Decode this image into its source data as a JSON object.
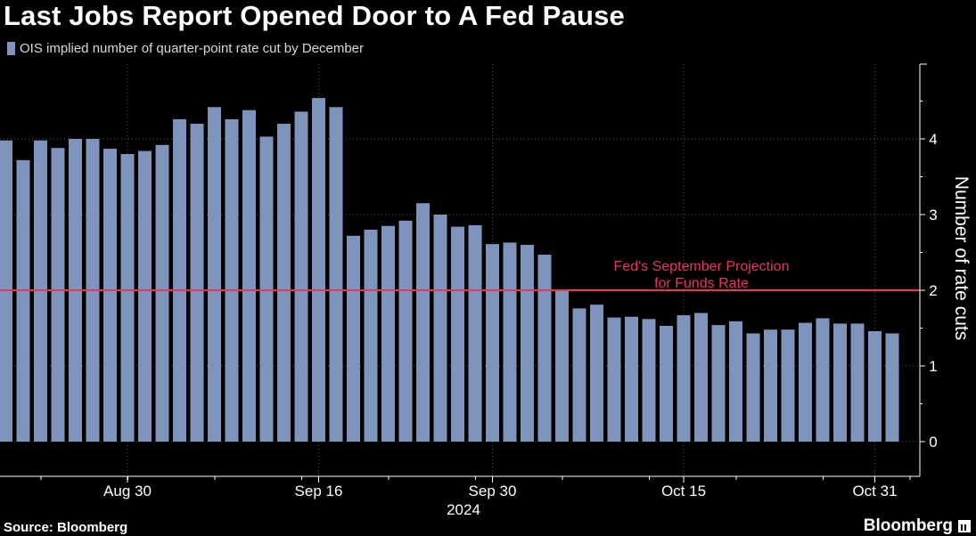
{
  "title": "Last Jobs Report Opened Door to A Fed Pause",
  "legend_label": "OIS implied number of quarter-point rate cut by December",
  "source": "Source: Bloomberg",
  "brand": "Bloomberg",
  "colors": {
    "background": "#000000",
    "bar": "#7f94bd",
    "reference_line": "#e8365d",
    "grid": "#555555",
    "text": "#ffffff"
  },
  "chart_data": {
    "type": "bar",
    "title": "Last Jobs Report Opened Door to A Fed Pause",
    "xlabel": "2024",
    "ylabel": "Number of rate cuts",
    "ylim": [
      0,
      4.9
    ],
    "y_ticks": [
      0,
      1,
      2,
      3,
      4
    ],
    "y_axis_side": "right",
    "grid": true,
    "legend_position": "top-left",
    "x_tick_labels": [
      {
        "label": "Aug 30",
        "index": 7
      },
      {
        "label": "Sep 16",
        "index": 18
      },
      {
        "label": "Sep 30",
        "index": 28
      },
      {
        "label": "Oct 15",
        "index": 39
      },
      {
        "label": "Oct 31",
        "index": 50
      }
    ],
    "year_label": "2024",
    "series": [
      {
        "name": "OIS implied number of quarter-point rate cut by December",
        "values": [
          3.98,
          3.72,
          3.98,
          3.88,
          4.0,
          4.0,
          3.87,
          3.8,
          3.84,
          3.92,
          4.26,
          4.2,
          4.42,
          4.26,
          4.38,
          4.03,
          4.2,
          4.36,
          4.54,
          4.42,
          2.72,
          2.8,
          2.85,
          2.92,
          3.15,
          3.0,
          2.84,
          2.86,
          2.61,
          2.63,
          2.6,
          2.47,
          1.99,
          1.76,
          1.81,
          1.64,
          1.65,
          1.62,
          1.53,
          1.67,
          1.7,
          1.54,
          1.59,
          1.43,
          1.48,
          1.48,
          1.57,
          1.63,
          1.56,
          1.56,
          1.46,
          1.43
        ]
      }
    ],
    "reference_line": {
      "value": 2.0,
      "label_line1": "Fed's September Projection",
      "label_line2": "for Funds Rate"
    }
  }
}
